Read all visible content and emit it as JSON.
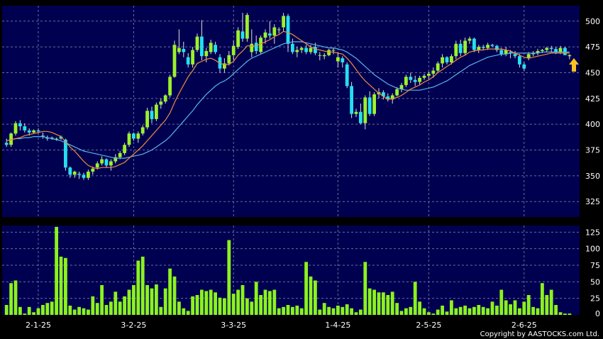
{
  "copyright": "Copyright by AASTOCKS.com Ltd.",
  "colors": {
    "background": "#000000",
    "panel": "#000050",
    "grid": "#6c6c9a",
    "candle_up": "#9bf22a",
    "candle_down": "#24e0f0",
    "ma_short": "#f08c3c",
    "ma_long": "#5ab4e6",
    "volume_bar": "#8cf21e",
    "arrow": "#ffc020"
  },
  "chart_data": [
    {
      "type": "candlestick",
      "title": "",
      "ylim": [
        310,
        515
      ],
      "y_ticks": [
        "325",
        "350",
        "375",
        "400",
        "425",
        "450",
        "475",
        "500"
      ],
      "x_ticks": [
        "2-1-25",
        "3-2-25",
        "3-3-25",
        "1-4-25",
        "2-5-25",
        "2-6-25"
      ],
      "grid": true,
      "ohlc": [
        [
          382,
          386,
          378,
          380
        ],
        [
          380,
          392,
          378,
          391
        ],
        [
          391,
          403,
          389,
          401
        ],
        [
          401,
          404,
          394,
          398
        ],
        [
          398,
          401,
          392,
          394
        ],
        [
          394,
          396,
          389,
          392
        ],
        [
          392,
          395,
          391,
          394
        ],
        [
          394,
          396,
          391,
          393
        ],
        [
          389,
          392,
          386,
          388
        ],
        [
          387,
          389,
          384,
          386
        ],
        [
          387,
          388,
          385,
          386
        ],
        [
          386,
          387,
          384,
          386
        ],
        [
          388,
          389,
          385,
          386
        ],
        [
          385,
          386,
          355,
          358
        ],
        [
          358,
          359,
          348,
          351
        ],
        [
          351,
          355,
          348,
          354
        ],
        [
          352,
          354,
          347,
          351
        ],
        [
          351,
          353,
          346,
          348
        ],
        [
          348,
          356,
          346,
          354
        ],
        [
          354,
          359,
          351,
          357
        ],
        [
          358,
          364,
          356,
          362
        ],
        [
          362,
          369,
          360,
          366
        ],
        [
          366,
          367,
          358,
          360
        ],
        [
          360,
          366,
          355,
          364
        ],
        [
          364,
          371,
          362,
          368
        ],
        [
          368,
          374,
          366,
          372
        ],
        [
          372,
          382,
          370,
          380
        ],
        [
          380,
          393,
          378,
          391
        ],
        [
          391,
          392,
          384,
          386
        ],
        [
          386,
          393,
          382,
          391
        ],
        [
          391,
          399,
          389,
          397
        ],
        [
          397,
          416,
          395,
          413
        ],
        [
          413,
          417,
          401,
          405
        ],
        [
          405,
          421,
          403,
          419
        ],
        [
          419,
          425,
          415,
          422
        ],
        [
          422,
          429,
          420,
          428
        ],
        [
          428,
          448,
          426,
          446
        ],
        [
          446,
          481,
          445,
          477
        ],
        [
          470,
          492,
          468,
          474
        ],
        [
          473,
          480,
          465,
          470
        ],
        [
          465,
          469,
          455,
          458
        ],
        [
          458,
          475,
          455,
          472
        ],
        [
          472,
          488,
          470,
          485
        ],
        [
          485,
          501,
          462,
          466
        ],
        [
          466,
          474,
          460,
          471
        ],
        [
          470,
          482,
          468,
          479
        ],
        [
          477,
          480,
          468,
          470
        ],
        [
          465,
          468,
          450,
          454
        ],
        [
          454,
          464,
          450,
          459
        ],
        [
          459,
          471,
          457,
          467
        ],
        [
          467,
          481,
          462,
          476
        ],
        [
          475,
          494,
          473,
          491
        ],
        [
          490,
          508,
          480,
          483
        ],
        [
          483,
          508,
          480,
          506
        ],
        [
          470,
          492,
          465,
          478
        ],
        [
          479,
          486,
          468,
          471
        ],
        [
          470,
          486,
          468,
          484
        ],
        [
          484,
          492,
          478,
          489
        ],
        [
          488,
          500,
          483,
          486
        ],
        [
          486,
          497,
          478,
          494
        ],
        [
          492,
          494,
          488,
          492
        ],
        [
          494,
          508,
          490,
          505
        ],
        [
          505,
          507,
          470,
          478
        ],
        [
          478,
          483,
          468,
          470
        ],
        [
          470,
          475,
          465,
          472
        ],
        [
          472,
          475,
          469,
          474
        ],
        [
          474,
          477,
          468,
          470
        ],
        [
          470,
          477,
          468,
          474
        ],
        [
          475,
          479,
          467,
          469
        ],
        [
          467,
          470,
          462,
          467
        ],
        [
          466,
          469,
          463,
          467
        ],
        [
          467,
          473,
          466,
          472
        ],
        [
          472,
          474,
          468,
          472
        ],
        [
          461,
          470,
          455,
          465
        ],
        [
          464,
          466,
          455,
          460
        ],
        [
          458,
          460,
          435,
          437
        ],
        [
          437,
          441,
          406,
          410
        ],
        [
          410,
          415,
          407,
          412
        ],
        [
          412,
          420,
          400,
          401
        ],
        [
          401,
          428,
          395,
          426
        ],
        [
          426,
          432,
          408,
          410
        ],
        [
          410,
          431,
          408,
          429
        ],
        [
          429,
          435,
          425,
          431
        ],
        [
          431,
          433,
          424,
          427
        ],
        [
          427,
          430,
          422,
          424
        ],
        [
          424,
          430,
          420,
          428
        ],
        [
          428,
          436,
          427,
          434
        ],
        [
          434,
          440,
          431,
          438
        ],
        [
          438,
          448,
          436,
          446
        ],
        [
          446,
          450,
          440,
          443
        ],
        [
          443,
          447,
          437,
          441
        ],
        [
          441,
          447,
          438,
          445
        ],
        [
          445,
          449,
          443,
          447
        ],
        [
          447,
          451,
          444,
          449
        ],
        [
          449,
          455,
          445,
          452
        ],
        [
          452,
          461,
          450,
          459
        ],
        [
          459,
          468,
          455,
          465
        ],
        [
          465,
          466,
          458,
          460
        ],
        [
          460,
          468,
          458,
          466
        ],
        [
          466,
          481,
          463,
          478
        ],
        [
          478,
          482,
          466,
          469
        ],
        [
          469,
          484,
          467,
          481
        ],
        [
          481,
          485,
          478,
          483
        ],
        [
          483,
          484,
          470,
          472
        ],
        [
          472,
          477,
          469,
          475
        ],
        [
          475,
          477,
          472,
          474
        ],
        [
          474,
          479,
          472,
          477
        ],
        [
          477,
          478,
          475,
          476
        ],
        [
          476,
          477,
          470,
          472
        ],
        [
          472,
          474,
          466,
          468
        ],
        [
          468,
          475,
          466,
          472
        ],
        [
          470,
          472,
          464,
          469
        ],
        [
          468,
          471,
          464,
          466
        ],
        [
          466,
          468,
          455,
          458
        ],
        [
          458,
          460,
          452,
          454
        ],
        [
          464,
          470,
          462,
          468
        ],
        [
          468,
          471,
          466,
          469
        ],
        [
          469,
          473,
          467,
          471
        ],
        [
          471,
          473,
          469,
          472
        ],
        [
          472,
          475,
          470,
          474
        ],
        [
          474,
          476,
          470,
          473
        ],
        [
          473,
          475,
          468,
          470
        ],
        [
          470,
          476,
          468,
          474
        ],
        [
          474,
          475,
          468,
          467
        ],
        [
          466,
          468,
          463,
          467
        ]
      ],
      "ma_short": [
        384,
        385,
        386,
        387,
        389,
        390,
        391,
        392,
        393,
        393,
        392,
        390,
        388,
        383,
        378,
        374,
        369,
        364,
        360,
        358,
        357,
        358,
        358,
        358,
        359,
        361,
        363,
        367,
        371,
        375,
        379,
        384,
        389,
        394,
        399,
        404,
        411,
        421,
        430,
        438,
        446,
        452,
        459,
        461,
        463,
        464,
        462,
        459,
        458,
        458,
        461,
        467,
        471,
        476,
        476,
        476,
        478,
        480,
        482,
        485,
        487,
        490,
        489,
        487,
        484,
        481,
        478,
        475,
        473,
        472,
        471,
        470,
        470,
        469,
        468,
        464,
        459,
        453,
        447,
        442,
        438,
        434,
        430,
        427,
        424,
        425,
        426,
        428,
        431,
        434,
        436,
        438,
        441,
        443,
        446,
        450,
        453,
        456,
        459,
        462,
        465,
        467,
        470,
        471,
        472,
        472,
        473,
        473,
        473,
        473,
        472,
        471,
        469,
        467,
        465,
        464,
        465,
        466,
        467,
        468,
        469,
        469,
        469,
        469,
        469
      ],
      "ma_long": [
        384,
        385,
        386,
        386,
        387,
        387,
        388,
        388,
        388,
        387,
        386,
        385,
        384,
        382,
        380,
        378,
        376,
        374,
        373,
        372,
        371,
        370,
        369,
        368,
        367,
        367,
        367,
        368,
        369,
        370,
        371,
        373,
        375,
        378,
        381,
        384,
        388,
        393,
        398,
        403,
        408,
        413,
        419,
        424,
        429,
        433,
        437,
        440,
        442,
        445,
        449,
        453,
        457,
        461,
        464,
        466,
        468,
        470,
        472,
        474,
        476,
        478,
        479,
        480,
        480,
        480,
        479,
        478,
        477,
        476,
        475,
        474,
        474,
        473,
        472,
        470,
        467,
        464,
        460,
        456,
        452,
        448,
        445,
        442,
        439,
        437,
        435,
        434,
        433,
        433,
        433,
        433,
        434,
        435,
        436,
        438,
        440,
        442,
        445,
        448,
        451,
        454,
        457,
        459,
        461,
        463,
        465,
        466,
        467,
        468,
        468,
        469,
        469,
        469,
        469,
        469,
        469,
        469,
        470,
        470,
        470,
        470,
        470,
        470,
        470
      ]
    },
    {
      "type": "bar",
      "title": "",
      "ylim": [
        0,
        135
      ],
      "y_ticks": [
        "0",
        "25",
        "50",
        "75",
        "100",
        "125"
      ],
      "values": [
        15,
        48,
        52,
        12,
        2,
        12,
        4,
        10,
        15,
        18,
        20,
        133,
        88,
        86,
        14,
        8,
        12,
        10,
        8,
        28,
        18,
        45,
        15,
        20,
        35,
        20,
        28,
        38,
        45,
        82,
        88,
        45,
        40,
        46,
        12,
        40,
        70,
        58,
        20,
        10,
        6,
        28,
        30,
        38,
        36,
        38,
        34,
        26,
        25,
        113,
        32,
        38,
        45,
        25,
        20,
        50,
        30,
        38,
        36,
        38,
        10,
        12,
        15,
        12,
        14,
        10,
        80,
        58,
        52,
        8,
        18,
        12,
        10,
        14,
        12,
        16,
        10,
        4,
        8,
        80,
        40,
        38,
        34,
        34,
        30,
        35,
        18,
        6,
        10,
        12,
        50,
        20,
        10,
        4,
        2,
        8,
        14,
        5,
        22,
        10,
        12,
        14,
        10,
        12,
        15,
        12,
        10,
        20,
        14,
        38,
        22,
        16,
        22,
        10,
        20,
        30,
        12,
        10,
        48,
        30,
        38,
        15,
        4,
        2,
        2
      ]
    }
  ]
}
